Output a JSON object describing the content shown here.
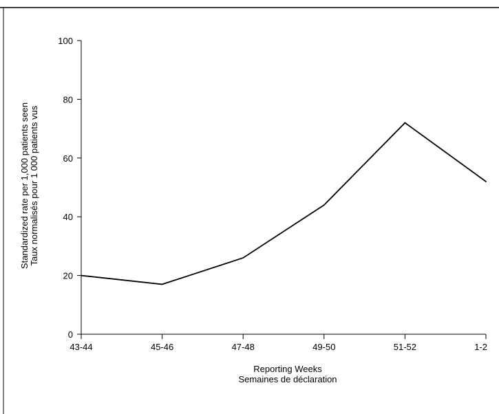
{
  "chart_data": {
    "type": "line",
    "categories": [
      "43-44",
      "45-46",
      "47-48",
      "49-50",
      "51-52",
      "1-2"
    ],
    "series": [
      {
        "values": [
          20,
          17,
          26,
          44,
          72,
          52
        ]
      }
    ],
    "xlabel": [
      "Reporting Weeks",
      "Semaines de déclaration"
    ],
    "ylabel": [
      "Standardized rate per 1,000 patients seen",
      "Taux normalisés pour 1 000 patients vus"
    ],
    "ylim": [
      0,
      100
    ],
    "yticks": [
      0,
      20,
      40,
      60,
      80,
      100
    ],
    "grid": false,
    "line_color": "#000000"
  }
}
